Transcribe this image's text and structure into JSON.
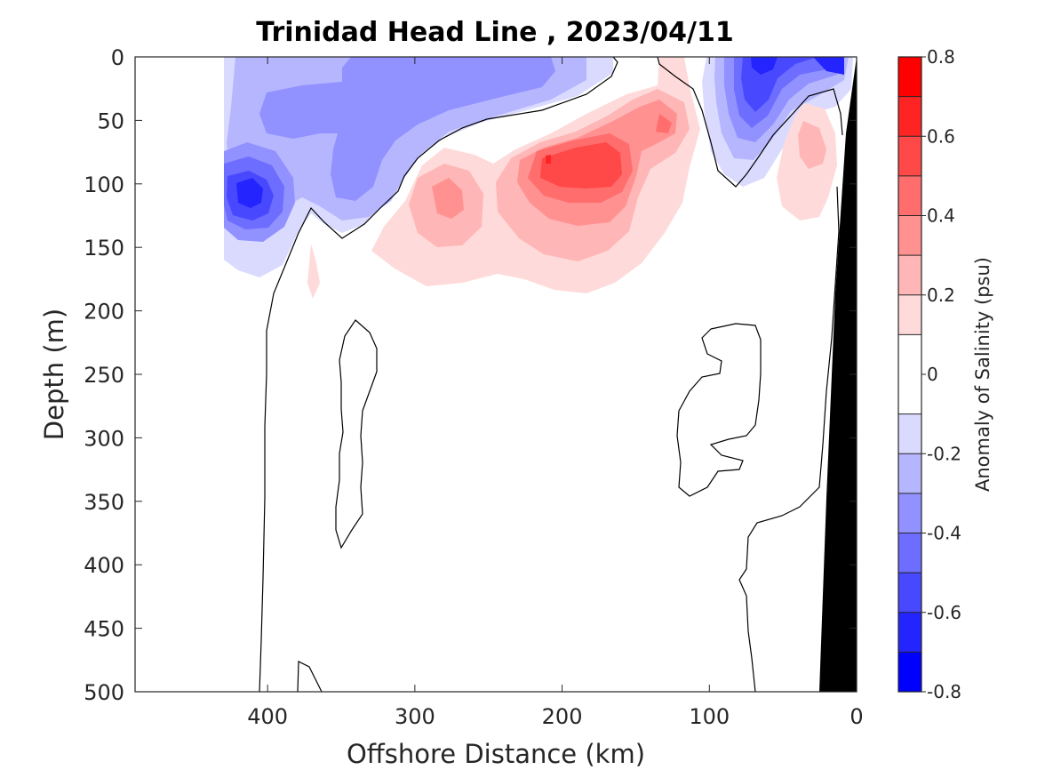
{
  "chart_data": {
    "type": "contour",
    "title": "Trinidad Head Line , 2023/04/11",
    "xlabel": "Offshore Distance (km)",
    "ylabel": "Depth (m)",
    "x_reversed": true,
    "xlim": [
      490,
      0
    ],
    "ylim": [
      0,
      500
    ],
    "y_reversed": true,
    "x_ticks": [
      400,
      300,
      200,
      100,
      0
    ],
    "y_ticks": [
      0,
      50,
      100,
      150,
      200,
      250,
      300,
      350,
      400,
      450,
      500
    ],
    "colorbar": {
      "label": "Anomaly of Salinity (psu)",
      "ticks": [
        0.8,
        0.6,
        0.4,
        0.2,
        0,
        -0.2,
        -0.4,
        -0.6,
        -0.8
      ],
      "range": [
        -0.8,
        0.8
      ],
      "levels": [
        -0.8,
        -0.7,
        -0.6,
        -0.5,
        -0.4,
        -0.3,
        -0.2,
        -0.1,
        0.1,
        0.2,
        0.3,
        0.4,
        0.5,
        0.6,
        0.7,
        0.8
      ],
      "colors": [
        "#0000ff",
        "#2424ff",
        "#4848ff",
        "#6d6dff",
        "#9191ff",
        "#b6b6ff",
        "#dadaff",
        "#ffffff",
        "#ffdada",
        "#ffb6b6",
        "#ff9191",
        "#ff6d6d",
        "#ff4848",
        "#ff2424",
        "#ff0000"
      ]
    },
    "features": [
      {
        "kind": "fresh_anomaly",
        "name": "offshore surface fresh layer",
        "x_km": [
          430,
          180
        ],
        "depth_m": [
          0,
          150
        ],
        "min_psu": -0.35
      },
      {
        "kind": "fresh_anomaly",
        "name": "fresh eddy core",
        "x_km": 410,
        "depth_m": 105,
        "min_psu": -0.7
      },
      {
        "kind": "fresh_anomaly",
        "name": "nearshore fresh lens",
        "x_km": 65,
        "depth_m": 30,
        "min_psu": -0.6
      },
      {
        "kind": "salty_anomaly",
        "name": "subsurface salty band",
        "x_km": [
          290,
          120
        ],
        "depth_m": [
          50,
          190
        ],
        "max_psu": 0.65
      },
      {
        "kind": "salty_anomaly",
        "name": "nearshore salty patch",
        "x_km": 30,
        "depth_m": 80,
        "max_psu": 0.35
      }
    ],
    "bathymetry_color": "#000000"
  }
}
